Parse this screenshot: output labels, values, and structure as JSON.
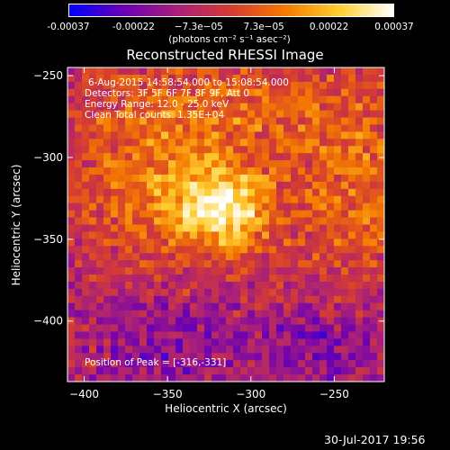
{
  "chart_data": {
    "type": "heatmap",
    "title": "Reconstructed RHESSI Image",
    "xlabel": "Heliocentric X (arcsec)",
    "ylabel": "Heliocentric Y (arcsec)",
    "xlim": [
      -410,
      -220
    ],
    "ylim": [
      -437,
      -245
    ],
    "x_ticks": [
      -400,
      -350,
      -300,
      -250
    ],
    "y_ticks": [
      -250,
      -300,
      -350,
      -400
    ],
    "colorbar": {
      "ticks": [
        "-0.00037",
        "-0.00022",
        "−7.3e−05",
        "7.3e−05",
        "0.00022",
        "0.00037"
      ],
      "unit_label": "(photons cm⁻² s⁻¹ asec⁻²)",
      "range": [
        -0.00037,
        0.00037
      ]
    },
    "peak": [
      -316,
      -331
    ],
    "annotations": [
      "6-Aug-2015 14:58:54.000 to 15:08:54.000",
      "Detectors: 3F 5F 6F 7F 8F 9F, Att 0",
      "Energy Range: 12.0 - 25.0 keV",
      "Clean     Total counts: 1.35E+04"
    ],
    "peak_label": "Position of Peak = [-316,-331]"
  },
  "footer": {
    "timestamp": "30-Jul-2017 19:56"
  },
  "colors": {
    "colormap": [
      "#0000ff",
      "#6a00b4",
      "#a8207a",
      "#d43c32",
      "#f47a00",
      "#ffcf30",
      "#ffffff"
    ]
  }
}
